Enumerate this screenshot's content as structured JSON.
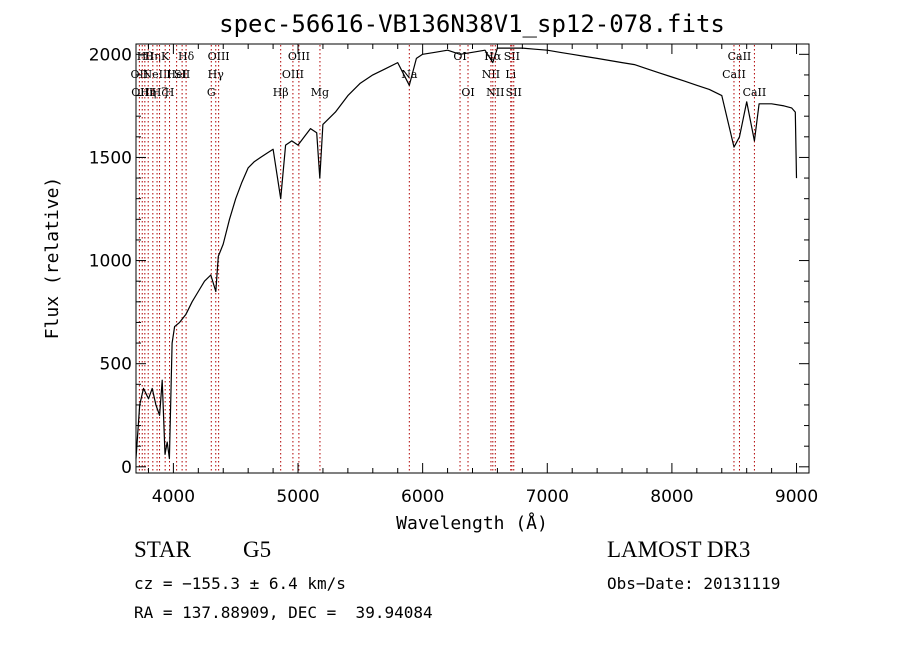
{
  "chart_data": {
    "type": "line",
    "title": "spec-56616-VB136N38V1_sp12-078.fits",
    "xlabel": "Wavelength (Å)",
    "ylabel": "Flux (relative)",
    "xlim": [
      3700,
      9100
    ],
    "ylim": [
      -30,
      2050
    ],
    "xticks": [
      4000,
      5000,
      6000,
      7000,
      8000,
      9000
    ],
    "yticks": [
      0,
      500,
      1000,
      1500,
      2000
    ],
    "grid": false,
    "series": [
      {
        "x": [
          3700,
          3730,
          3760,
          3800,
          3830,
          3860,
          3889,
          3910,
          3933,
          3950,
          3968,
          3990,
          4010,
          4050,
          4101,
          4150,
          4200,
          4250,
          4300,
          4340,
          4360,
          4400,
          4450,
          4500,
          4550,
          4600,
          4650,
          4700,
          4750,
          4800,
          4861,
          4900,
          4950,
          5000,
          5050,
          5100,
          5150,
          5175,
          5200,
          5300,
          5400,
          5500,
          5600,
          5700,
          5800,
          5893,
          5950,
          6000,
          6100,
          6200,
          6300,
          6400,
          6500,
          6563,
          6600,
          6700,
          6800,
          6900,
          7000,
          7100,
          7200,
          7300,
          7400,
          7500,
          7600,
          7700,
          7800,
          7900,
          8000,
          8100,
          8200,
          8300,
          8400,
          8498,
          8542,
          8600,
          8662,
          8700,
          8800,
          8900,
          8960,
          8990,
          9000
        ],
        "values": [
          40,
          300,
          380,
          330,
          380,
          300,
          250,
          420,
          60,
          120,
          40,
          600,
          680,
          700,
          740,
          800,
          850,
          900,
          930,
          850,
          1020,
          1080,
          1200,
          1300,
          1380,
          1450,
          1480,
          1500,
          1520,
          1540,
          1300,
          1560,
          1580,
          1560,
          1600,
          1640,
          1620,
          1400,
          1660,
          1720,
          1800,
          1860,
          1900,
          1930,
          1960,
          1850,
          1980,
          2000,
          2010,
          2020,
          2000,
          2010,
          2020,
          1960,
          2030,
          2030,
          2030,
          2025,
          2020,
          2010,
          2000,
          1990,
          1980,
          1970,
          1960,
          1950,
          1930,
          1910,
          1890,
          1870,
          1850,
          1830,
          1800,
          1550,
          1600,
          1770,
          1580,
          1760,
          1760,
          1750,
          1740,
          1720,
          1400
        ]
      }
    ],
    "lines": [
      {
        "wl": 3727,
        "label": "OII",
        "row": 1
      },
      {
        "wl": 3750,
        "label": "OIII",
        "row": 2
      },
      {
        "wl": 3771,
        "label": "Hθ",
        "row": 0
      },
      {
        "wl": 3798,
        "label": "Hη",
        "row": 2
      },
      {
        "wl": 3835,
        "label": "Hη",
        "row": 0
      },
      {
        "wl": 3869,
        "label": "NeIII",
        "row": 1
      },
      {
        "wl": 3889,
        "label": "Hζ",
        "row": 2
      },
      {
        "wl": 3934,
        "label": "K",
        "row": 0
      },
      {
        "wl": 3969,
        "label": "H",
        "row": 2
      },
      {
        "wl": 4026,
        "label": "HeI",
        "row": 1
      },
      {
        "wl": 4070,
        "label": "SII",
        "row": 1
      },
      {
        "wl": 4102,
        "label": "Hδ",
        "row": 0
      },
      {
        "wl": 4304,
        "label": "G",
        "row": 2
      },
      {
        "wl": 4340,
        "label": "Hγ",
        "row": 1
      },
      {
        "wl": 4363,
        "label": "OIII",
        "row": 0
      },
      {
        "wl": 4861,
        "label": "Hβ",
        "row": 2
      },
      {
        "wl": 4959,
        "label": "OIII",
        "row": 1
      },
      {
        "wl": 5007,
        "label": "OIII",
        "row": 0
      },
      {
        "wl": 5176,
        "label": "Mg",
        "row": 2
      },
      {
        "wl": 5893,
        "label": "Na",
        "row": 1
      },
      {
        "wl": 6300,
        "label": "OI",
        "row": 0
      },
      {
        "wl": 6364,
        "label": "OI",
        "row": 2
      },
      {
        "wl": 6548,
        "label": "NII",
        "row": 1
      },
      {
        "wl": 6563,
        "label": "Hα",
        "row": 0
      },
      {
        "wl": 6583,
        "label": "NII",
        "row": 2
      },
      {
        "wl": 6707,
        "label": "Li",
        "row": 1
      },
      {
        "wl": 6716,
        "label": "SII",
        "row": 0
      },
      {
        "wl": 6731,
        "label": "SII",
        "row": 2
      },
      {
        "wl": 8498,
        "label": "CaII",
        "row": 1
      },
      {
        "wl": 8542,
        "label": "CaII",
        "row": 0
      },
      {
        "wl": 8662,
        "label": "CaII",
        "row": 2
      }
    ]
  },
  "info": {
    "object_class": "STAR",
    "subclass": "G5",
    "survey": "LAMOST DR3",
    "cz": "cz = −155.3 ± 6.4 km/s",
    "obs_date": "Obs−Date: 20131119",
    "coords": "RA = 137.88909, DEC =  39.94084"
  },
  "colors": {
    "spectrum": "#000000",
    "line_markers": "#b00000"
  }
}
